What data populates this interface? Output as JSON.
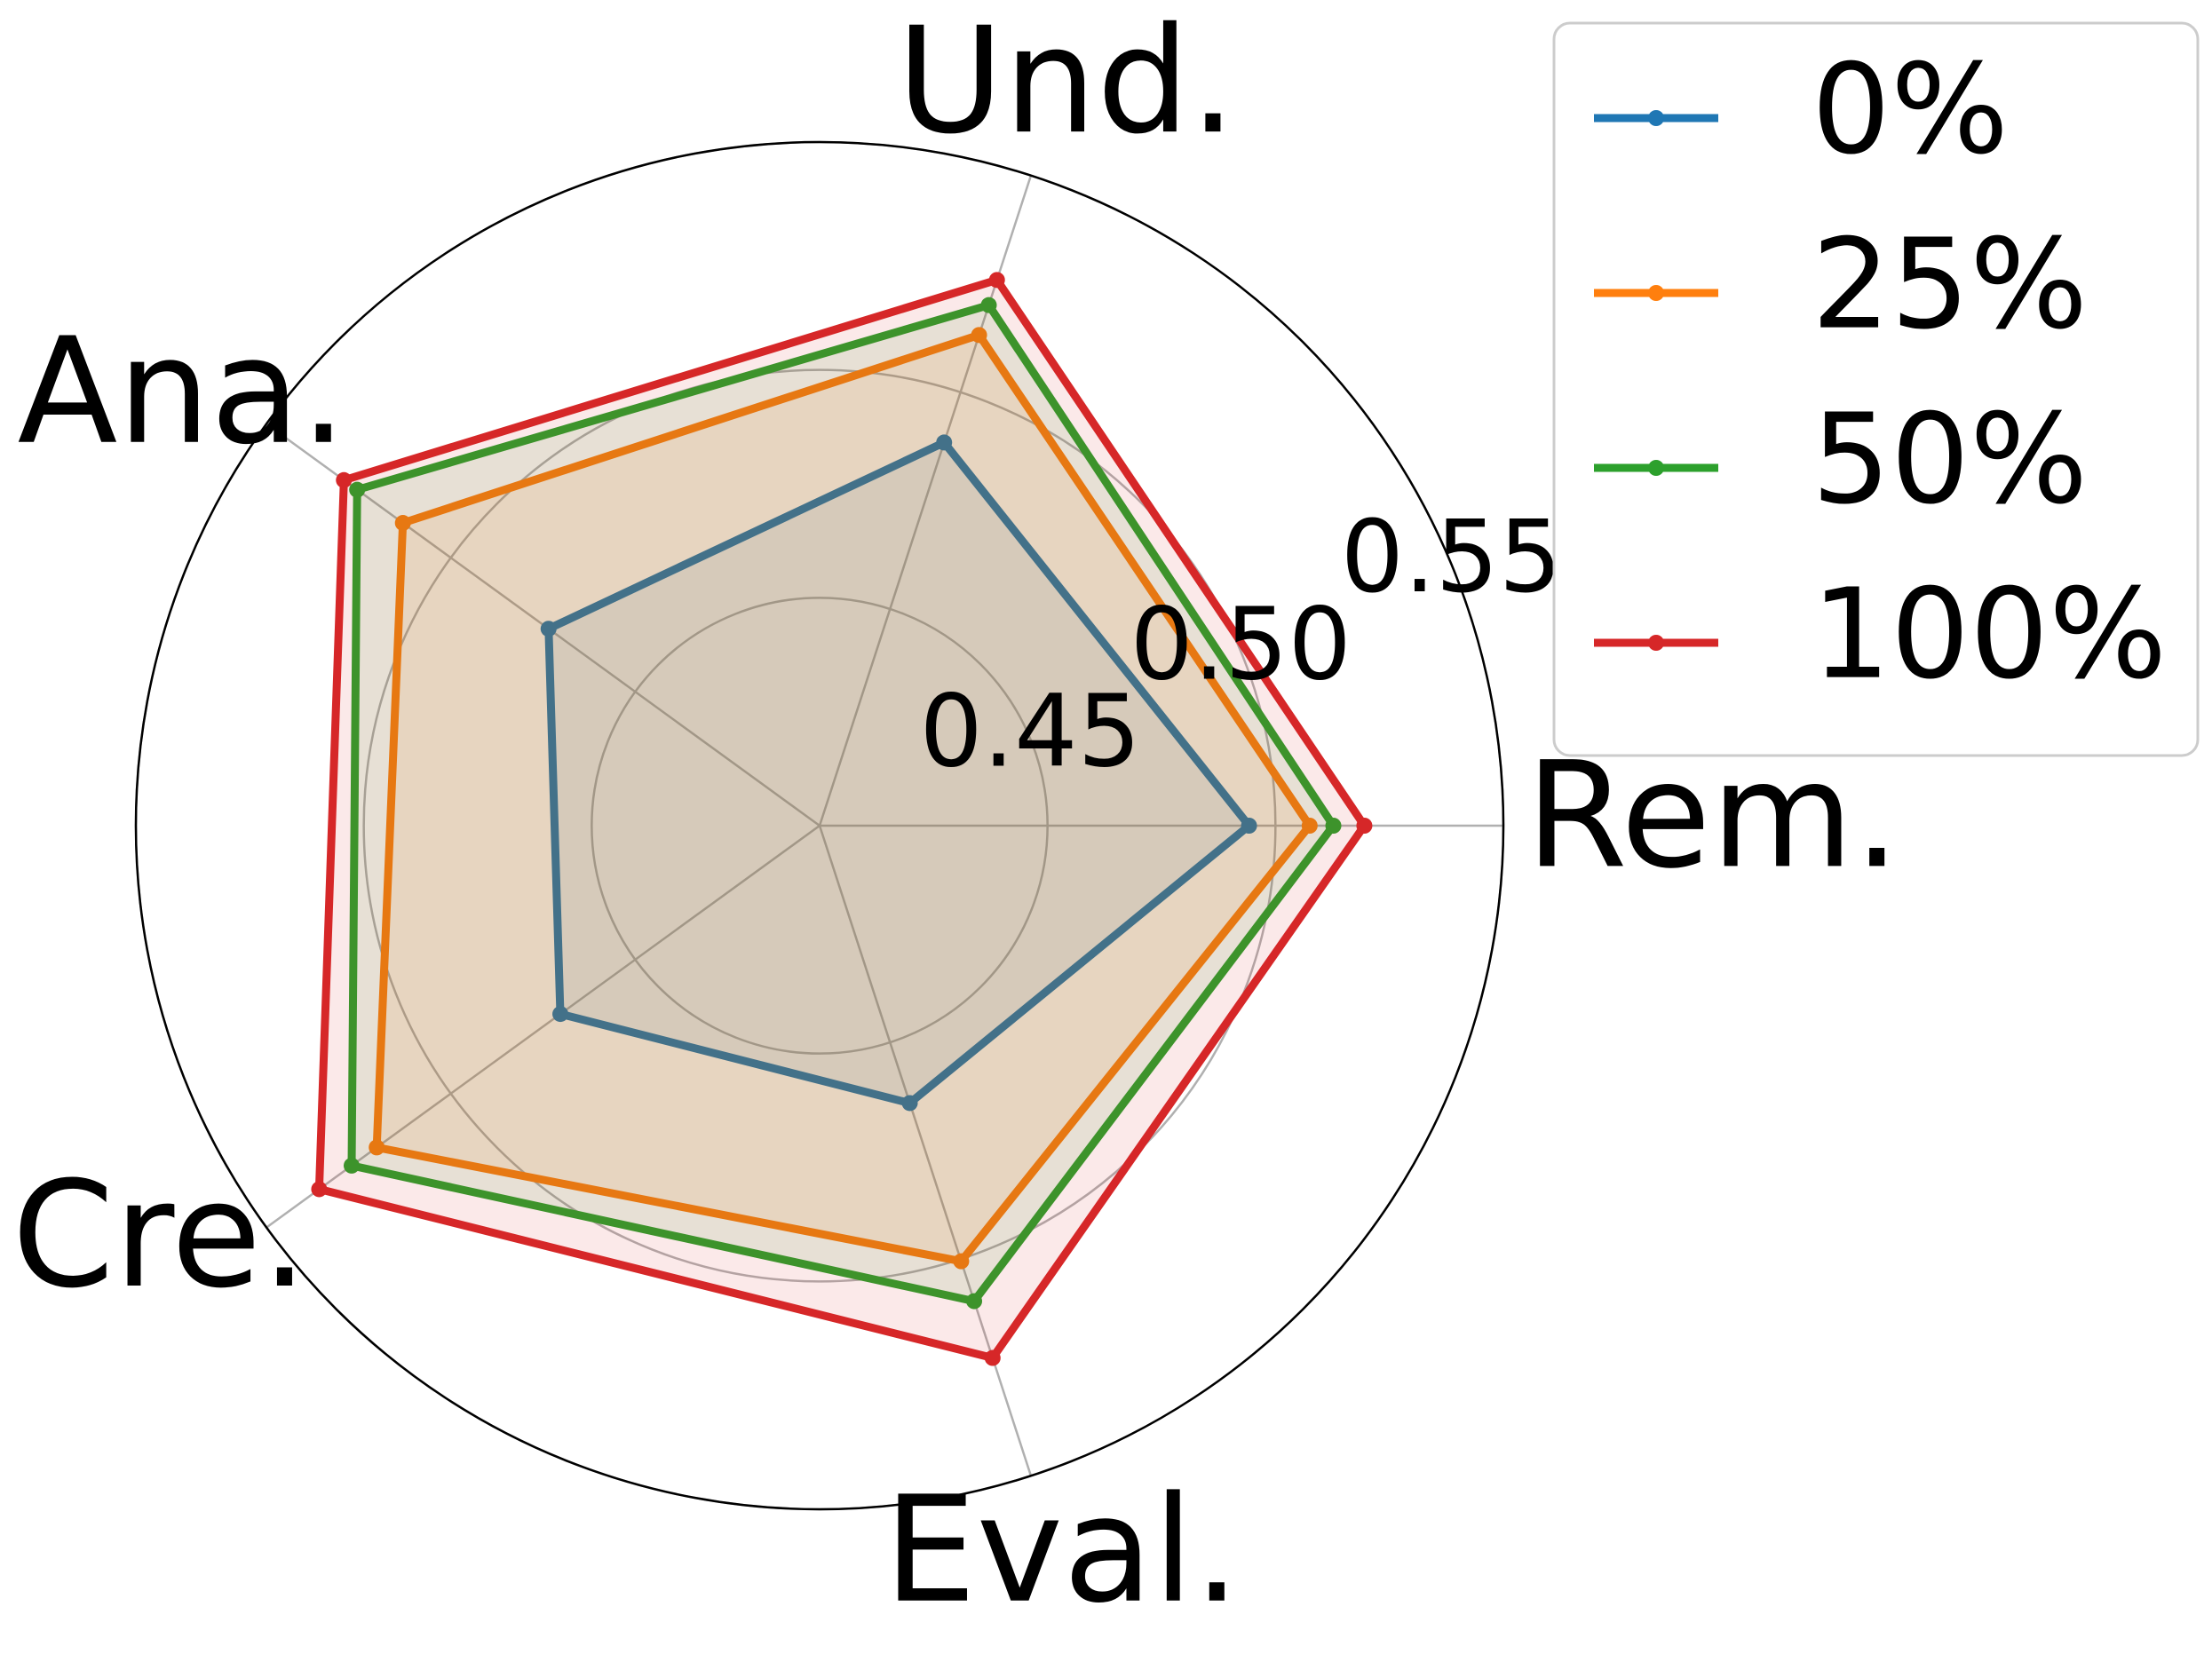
{
  "chart_data": {
    "type": "radar",
    "title": "",
    "categories": [
      "Rem.",
      "Und.",
      "Ana.",
      "Cre.",
      "Eval."
    ],
    "radial_ticks": [
      0.45,
      0.5,
      0.55
    ],
    "radial_tick_labels": [
      "0.45",
      "0.50",
      "0.55"
    ],
    "rlim": [
      0.4,
      0.55
    ],
    "series": [
      {
        "name": "0%",
        "color": "#1f77b4",
        "values": [
          0.4942,
          0.4884,
          0.4735,
          0.4703,
          0.464
        ]
      },
      {
        "name": "25%",
        "color": "#ff7f0e",
        "values": [
          0.5075,
          0.5132,
          0.513,
          0.5201,
          0.5005
        ]
      },
      {
        "name": "50%",
        "color": "#2ca02c",
        "values": [
          0.5127,
          0.5201,
          0.5254,
          0.5269,
          0.5097
        ]
      },
      {
        "name": "100%",
        "color": "#d62728",
        "values": [
          0.5195,
          0.5259,
          0.529,
          0.5357,
          0.5228
        ]
      }
    ],
    "legend": {
      "location": "top-right",
      "entries": [
        "0%",
        "25%",
        "50%",
        "100%"
      ]
    },
    "grid": true
  }
}
